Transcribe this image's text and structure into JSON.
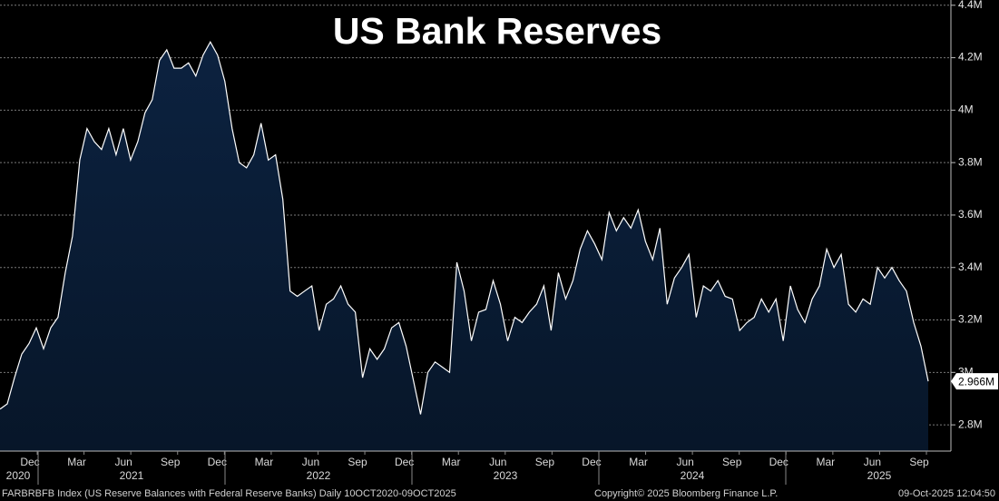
{
  "chart_data": {
    "type": "area",
    "title": "US Bank Reserves",
    "color": "#0c2240",
    "line_color": "#ffffff",
    "values": [
      2.86,
      2.88,
      2.98,
      3.07,
      3.11,
      3.17,
      3.09,
      3.17,
      3.21,
      3.38,
      3.52,
      3.81,
      3.93,
      3.88,
      3.85,
      3.93,
      3.83,
      3.93,
      3.81,
      3.88,
      3.99,
      4.04,
      4.19,
      4.23,
      4.16,
      4.16,
      4.18,
      4.13,
      4.21,
      4.26,
      4.21,
      4.11,
      3.93,
      3.8,
      3.78,
      3.83,
      3.95,
      3.81,
      3.83,
      3.66,
      3.31,
      3.29,
      3.31,
      3.33,
      3.16,
      3.26,
      3.28,
      3.33,
      3.26,
      3.23,
      2.98,
      3.09,
      3.05,
      3.09,
      3.17,
      3.19,
      3.1,
      2.97,
      2.84,
      3.0,
      3.04,
      3.02,
      3.0,
      3.42,
      3.31,
      3.12,
      3.23,
      3.24,
      3.35,
      3.26,
      3.12,
      3.21,
      3.19,
      3.23,
      3.26,
      3.33,
      3.16,
      3.38,
      3.28,
      3.35,
      3.47,
      3.54,
      3.49,
      3.43,
      3.61,
      3.54,
      3.59,
      3.55,
      3.62,
      3.5,
      3.43,
      3.55,
      3.26,
      3.36,
      3.4,
      3.45,
      3.21,
      3.33,
      3.31,
      3.35,
      3.29,
      3.28,
      3.16,
      3.19,
      3.21,
      3.28,
      3.23,
      3.28,
      3.12,
      3.33,
      3.24,
      3.19,
      3.28,
      3.33,
      3.47,
      3.4,
      3.45,
      3.26,
      3.23,
      3.28,
      3.26,
      3.4,
      3.36,
      3.4,
      3.35,
      3.31,
      3.19,
      3.1,
      2.966
    ],
    "last_value_label": "2.966M",
    "month_labels": [
      "Dec",
      "Mar",
      "Jun",
      "Sep",
      "Dec",
      "Mar",
      "Jun",
      "Sep",
      "Dec",
      "Mar",
      "Jun",
      "Sep",
      "Dec",
      "Mar",
      "Jun",
      "Sep",
      "Dec",
      "Mar",
      "Jun",
      "Sep"
    ],
    "year_labels": [
      "2020",
      "2021",
      "2022",
      "2023",
      "2024",
      "2025"
    ],
    "ylim": [
      2.7,
      4.42
    ],
    "yticks": [
      {
        "value": 2.8,
        "label": "2.8M"
      },
      {
        "value": 3,
        "label": "3M"
      },
      {
        "value": 3.2,
        "label": "3.2M"
      },
      {
        "value": 3.4,
        "label": "3.4M"
      },
      {
        "value": 3.6,
        "label": "3.6M"
      },
      {
        "value": 3.8,
        "label": "3.8M"
      },
      {
        "value": 4,
        "label": "4M"
      },
      {
        "value": 4.2,
        "label": "4.2M"
      },
      {
        "value": 4.4,
        "label": "4.4M"
      }
    ],
    "grid": true,
    "footer_left": "FARBRBFB Index (US Reserve Balances with Federal Reserve Banks) Daily 10OCT2020-09OCT2025",
    "footer_center": "Copyright© 2025 Bloomberg Finance L.P.",
    "footer_right": "09-Oct-2025 12:04:50"
  }
}
